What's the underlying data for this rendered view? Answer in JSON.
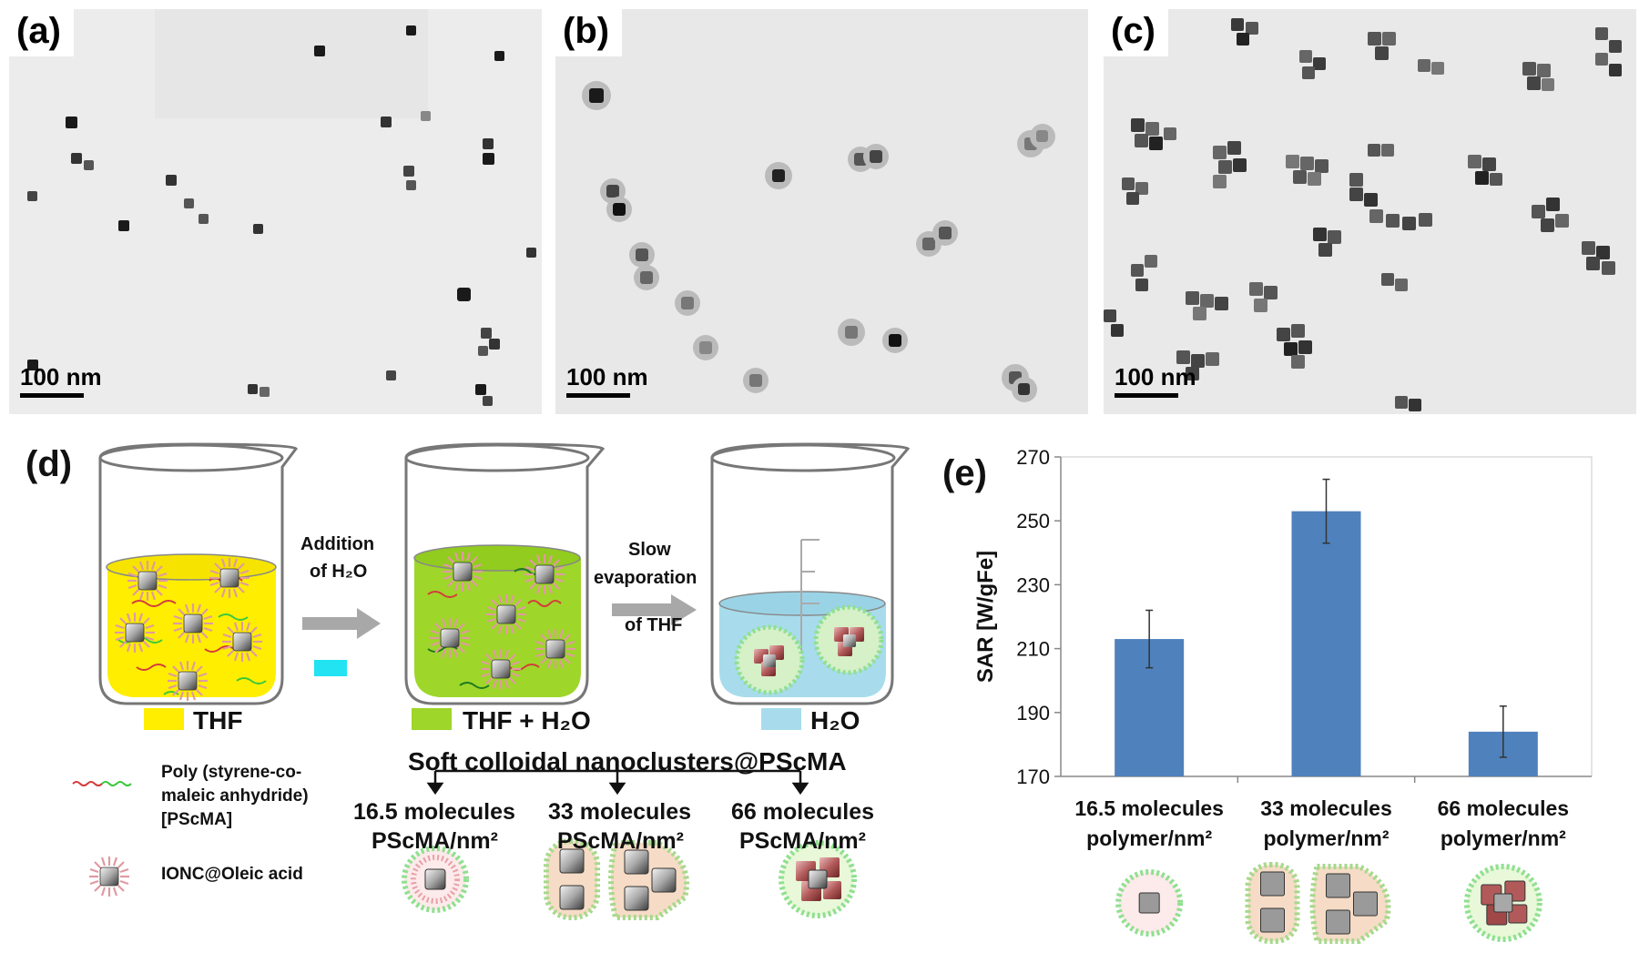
{
  "panels": {
    "a": {
      "label": "(a)",
      "scale": "100 nm"
    },
    "b": {
      "label": "(b)",
      "scale": "100 nm"
    },
    "c": {
      "label": "(c)",
      "scale": "100 nm"
    },
    "d": {
      "label": "(d)"
    },
    "e": {
      "label": "(e)"
    }
  },
  "schematic": {
    "arrow1_line1": "Addition",
    "arrow1_line2": "of H₂O",
    "arrow2_line1": "Slow",
    "arrow2_line2": "evaporation",
    "arrow2_line3": "of THF",
    "solvent1": "THF",
    "solvent2": "THF + H₂O",
    "solvent3": "H₂O",
    "solvent1_color": "#ffee00",
    "solvent2_color": "#9ed62a",
    "solvent3_color": "#a8dcec",
    "title": "Soft colloidal nanoclusters@PScMA",
    "branches": [
      {
        "line1": "16.5 molecules",
        "line2": "PScMA/nm²"
      },
      {
        "line1": "33 molecules",
        "line2": "PScMA/nm²"
      },
      {
        "line1": "66 molecules",
        "line2": "PScMA/nm²"
      }
    ],
    "legend_polymer_1": "Poly (styrene-co-",
    "legend_polymer_2": "maleic anhydride)",
    "legend_polymer_3": "[PScMA]",
    "legend_ionc": "IONC@Oleic acid"
  },
  "chart_data": {
    "type": "bar",
    "categories": [
      "16.5 molecules polymer/nm2",
      "33 molecules polymer/nm2",
      "66 molecules polymer/nm2"
    ],
    "category_lines": [
      [
        "16.5 molecules",
        "polymer/nm²"
      ],
      [
        "33 molecules",
        "polymer/nm²"
      ],
      [
        "66 molecules",
        "polymer/nm²"
      ]
    ],
    "values": [
      213,
      253,
      184
    ],
    "errors": [
      9,
      10,
      8
    ],
    "ylabel": "SAR [W/gFe]",
    "ylim": [
      170,
      270
    ],
    "yticks": [
      "170",
      "190",
      "210",
      "230",
      "250",
      "270"
    ],
    "bar_color": "#4f81bd",
    "grid": false
  }
}
